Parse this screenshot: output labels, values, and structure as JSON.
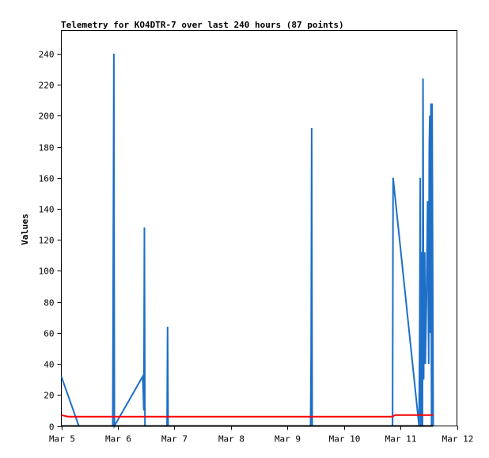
{
  "chart_data": {
    "type": "line",
    "title": "Telemetry for KO4DTR-7 over last 240 hours (87 points)",
    "xlabel": "",
    "ylabel": "Values",
    "xlim": [
      "Mar 5",
      "Mar 12"
    ],
    "ylim": [
      0,
      255
    ],
    "x_ticks": [
      "Mar 5",
      "Mar 6",
      "Mar 7",
      "Mar 8",
      "Mar 9",
      "Mar 10",
      "Mar 11",
      "Mar 12"
    ],
    "y_ticks": [
      0,
      20,
      40,
      60,
      80,
      100,
      120,
      140,
      160,
      180,
      200,
      220,
      240
    ],
    "grid": false,
    "legend": "none",
    "series": [
      {
        "color": "#1e6fc8",
        "points": [
          [
            5.0,
            32
          ],
          [
            5.31,
            0
          ],
          [
            5.91,
            0
          ],
          [
            5.92,
            120
          ],
          [
            5.93,
            240
          ],
          [
            5.94,
            0
          ],
          [
            6.44,
            32
          ],
          [
            6.46,
            10
          ],
          [
            6.47,
            128
          ],
          [
            6.48,
            0
          ],
          [
            6.87,
            0
          ],
          [
            6.88,
            64
          ],
          [
            6.89,
            0
          ],
          [
            9.41,
            0
          ],
          [
            9.42,
            48
          ],
          [
            9.43,
            192
          ],
          [
            9.44,
            0
          ],
          [
            10.86,
            0
          ],
          [
            10.87,
            160
          ],
          [
            11.33,
            0
          ],
          [
            11.34,
            60
          ],
          [
            11.35,
            160
          ],
          [
            11.36,
            0
          ],
          [
            11.37,
            80
          ],
          [
            11.38,
            112
          ],
          [
            11.39,
            0
          ],
          [
            11.4,
            224
          ],
          [
            11.41,
            30
          ],
          [
            11.43,
            112
          ],
          [
            11.44,
            40
          ],
          [
            11.46,
            80
          ],
          [
            11.48,
            145
          ],
          [
            11.5,
            40
          ],
          [
            11.51,
            180
          ],
          [
            11.52,
            200
          ],
          [
            11.53,
            60
          ],
          [
            11.54,
            208
          ],
          [
            11.55,
            0
          ],
          [
            11.56,
            208
          ],
          [
            11.57,
            112
          ],
          [
            11.58,
            0
          ]
        ]
      },
      {
        "color": "#ff0000",
        "points": [
          [
            5.0,
            7
          ],
          [
            5.12,
            6
          ],
          [
            10.86,
            6
          ],
          [
            10.9,
            7
          ],
          [
            11.58,
            7
          ]
        ]
      },
      {
        "color": "#000000",
        "points": [
          [
            5.0,
            0
          ],
          [
            11.58,
            0
          ]
        ]
      }
    ]
  }
}
